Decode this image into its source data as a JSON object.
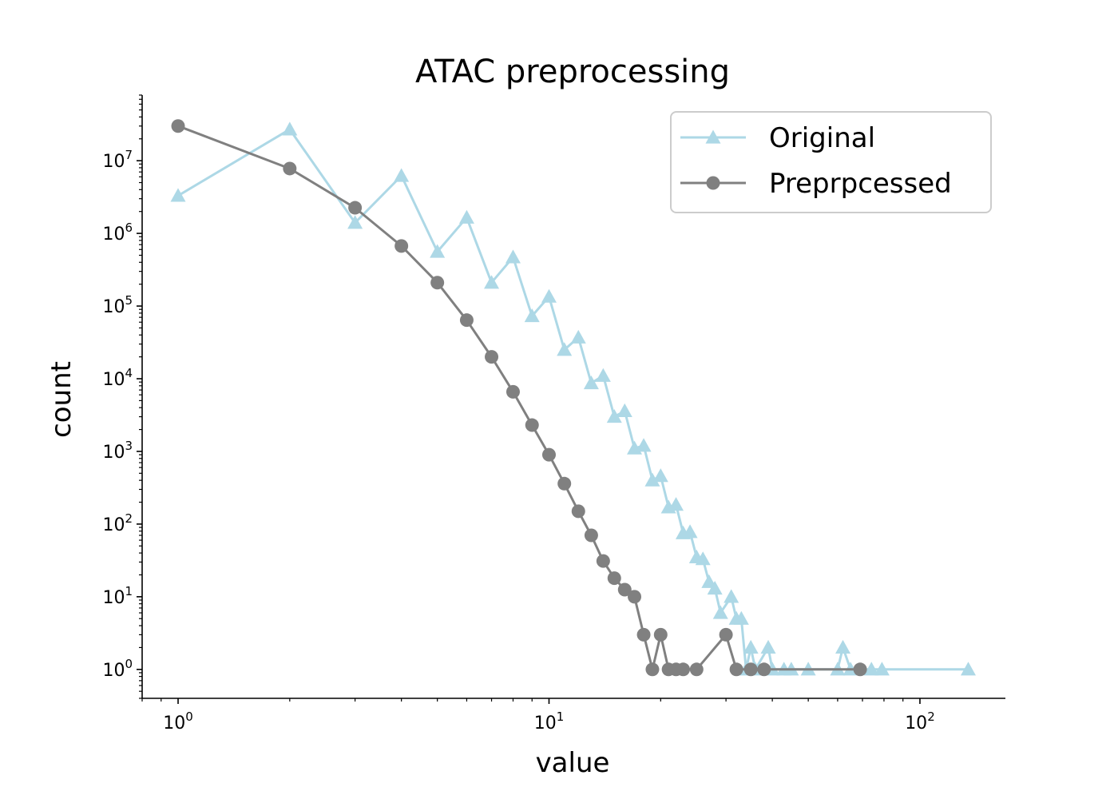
{
  "chart_data": {
    "type": "line",
    "title": "ATAC preprocessing",
    "xlabel": "value",
    "ylabel": "count",
    "xscale": "log",
    "yscale": "log",
    "xlim": [
      0.8,
      170
    ],
    "ylim": [
      0.4,
      80000000
    ],
    "x_tick_labels": [
      {
        "value": 1,
        "base": "10",
        "exp": "0"
      },
      {
        "value": 10,
        "base": "10",
        "exp": "1"
      },
      {
        "value": 100,
        "base": "10",
        "exp": "2"
      }
    ],
    "y_tick_labels": [
      {
        "value": 1,
        "base": "10",
        "exp": "0"
      },
      {
        "value": 10,
        "base": "10",
        "exp": "1"
      },
      {
        "value": 100,
        "base": "10",
        "exp": "2"
      },
      {
        "value": 1000,
        "base": "10",
        "exp": "3"
      },
      {
        "value": 10000,
        "base": "10",
        "exp": "4"
      },
      {
        "value": 100000,
        "base": "10",
        "exp": "5"
      },
      {
        "value": 1000000,
        "base": "10",
        "exp": "6"
      },
      {
        "value": 10000000,
        "base": "10",
        "exp": "7"
      }
    ],
    "grid": false,
    "legend_position": "top-right",
    "series": [
      {
        "name": "Original",
        "color": "#add8e6",
        "marker": "triangle",
        "points": [
          [
            1,
            3300000
          ],
          [
            2,
            27000000
          ],
          [
            3,
            1400000
          ],
          [
            4,
            6200000
          ],
          [
            5,
            560000
          ],
          [
            6,
            1650000
          ],
          [
            7,
            210000
          ],
          [
            8,
            470000
          ],
          [
            9,
            73000
          ],
          [
            10,
            135000
          ],
          [
            11,
            25000
          ],
          [
            12,
            37000
          ],
          [
            13,
            8700
          ],
          [
            14,
            11000
          ],
          [
            15,
            3000
          ],
          [
            16,
            3600
          ],
          [
            17,
            1100
          ],
          [
            18,
            1200
          ],
          [
            19,
            400
          ],
          [
            20,
            460
          ],
          [
            21,
            170
          ],
          [
            22,
            185
          ],
          [
            23,
            75
          ],
          [
            24,
            78
          ],
          [
            25,
            35
          ],
          [
            26,
            33
          ],
          [
            27,
            16
          ],
          [
            28,
            13
          ],
          [
            29,
            6
          ],
          [
            31,
            10
          ],
          [
            32,
            5
          ],
          [
            33,
            5
          ],
          [
            34,
            1
          ],
          [
            35,
            2
          ],
          [
            36,
            1
          ],
          [
            39,
            2
          ],
          [
            40,
            1
          ],
          [
            43,
            1
          ],
          [
            45,
            1
          ],
          [
            50,
            1
          ],
          [
            60,
            1
          ],
          [
            62,
            2
          ],
          [
            65,
            1
          ],
          [
            74,
            1
          ],
          [
            79,
            1
          ],
          [
            135,
            1
          ]
        ]
      },
      {
        "name": "Preprpcessed",
        "color": "#808080",
        "marker": "circle",
        "points": [
          [
            1,
            30000000
          ],
          [
            2,
            7800000
          ],
          [
            3,
            2250000
          ],
          [
            4,
            670000
          ],
          [
            5,
            210000
          ],
          [
            6,
            64000
          ],
          [
            7,
            20000
          ],
          [
            8,
            6600
          ],
          [
            9,
            2300
          ],
          [
            10,
            900
          ],
          [
            11,
            360
          ],
          [
            12,
            150
          ],
          [
            13,
            70
          ],
          [
            14,
            31
          ],
          [
            15,
            18
          ],
          [
            16,
            12.5
          ],
          [
            17,
            10
          ],
          [
            18,
            3
          ],
          [
            19,
            1
          ],
          [
            20,
            3
          ],
          [
            21,
            1
          ],
          [
            22,
            1
          ],
          [
            23,
            1
          ],
          [
            25,
            1
          ],
          [
            30,
            3
          ],
          [
            32,
            1
          ],
          [
            35,
            1
          ],
          [
            38,
            1
          ],
          [
            69,
            1
          ]
        ]
      }
    ]
  }
}
